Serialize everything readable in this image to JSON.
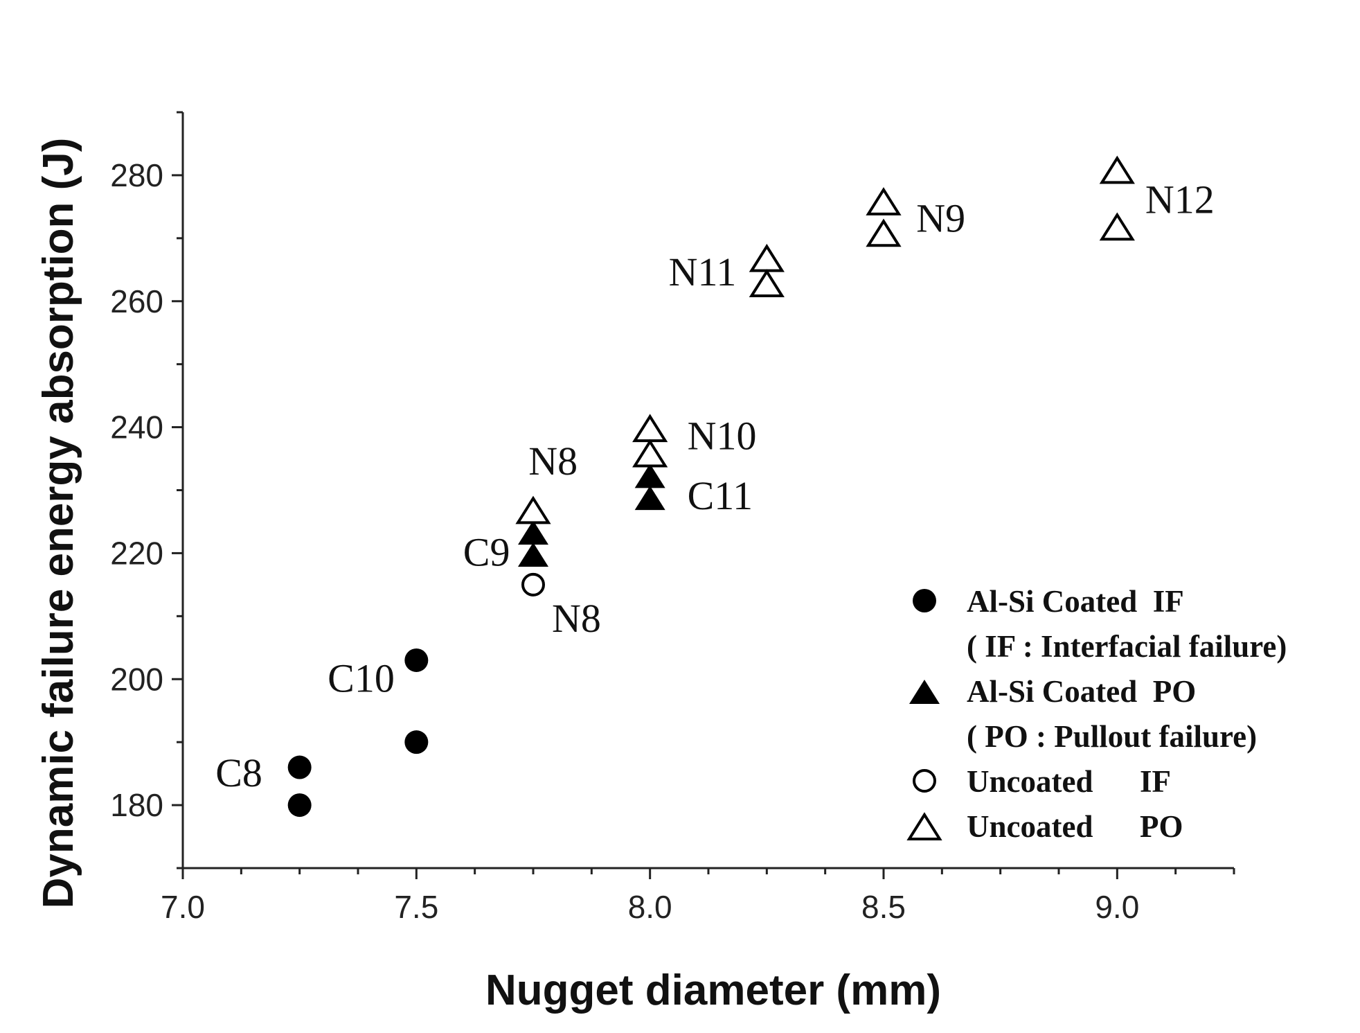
{
  "chart_data": {
    "type": "scatter",
    "xlabel": "Nugget diameter (mm)",
    "ylabel": "Dynamic failure energy absorption (J)",
    "xlim": [
      7.0,
      9.25
    ],
    "ylim": [
      170,
      290
    ],
    "x_ticks": [
      7.0,
      7.5,
      8.0,
      8.5,
      9.0
    ],
    "x_tick_labels": [
      "7.0",
      "7.5",
      "8.0",
      "8.5",
      "9.0"
    ],
    "y_ticks": [
      180,
      200,
      220,
      240,
      260,
      280
    ],
    "y_tick_labels": [
      "180",
      "200",
      "220",
      "240",
      "260",
      "280"
    ],
    "grid": false,
    "legend_position": "bottom-right",
    "series": [
      {
        "name": "Al-Si Coated IF",
        "legend_lines": [
          "Al-Si Coated  IF",
          "( IF : Interfacial failure)"
        ],
        "marker": "circle-filled",
        "points": [
          {
            "x": 7.25,
            "y": 186
          },
          {
            "x": 7.25,
            "y": 180
          },
          {
            "x": 7.5,
            "y": 203
          },
          {
            "x": 7.5,
            "y": 190
          }
        ]
      },
      {
        "name": "Al-Si Coated PO",
        "legend_lines": [
          "Al-Si Coated  PO",
          "( PO : Pullout failure)"
        ],
        "marker": "triangle-filled",
        "points": [
          {
            "x": 7.75,
            "y": 223
          },
          {
            "x": 7.75,
            "y": 219.5
          },
          {
            "x": 8.0,
            "y": 232
          },
          {
            "x": 8.0,
            "y": 228.5
          }
        ]
      },
      {
        "name": "Uncoated IF",
        "legend_lines": [
          "Uncoated      IF"
        ],
        "marker": "circle-open",
        "points": [
          {
            "x": 7.75,
            "y": 215
          }
        ]
      },
      {
        "name": "Uncoated PO",
        "legend_lines": [
          "Uncoated      PO"
        ],
        "marker": "triangle-open",
        "points": [
          {
            "x": 7.75,
            "y": 226.5
          },
          {
            "x": 8.0,
            "y": 239.5
          },
          {
            "x": 8.0,
            "y": 235.5
          },
          {
            "x": 8.25,
            "y": 266.5
          },
          {
            "x": 8.25,
            "y": 262.5
          },
          {
            "x": 8.5,
            "y": 275.5
          },
          {
            "x": 8.5,
            "y": 270.5
          },
          {
            "x": 9.0,
            "y": 280.5
          },
          {
            "x": 9.0,
            "y": 271.5
          }
        ]
      }
    ],
    "annotations": [
      {
        "text": "C8",
        "x": 7.07,
        "y": 183
      },
      {
        "text": "C10",
        "x": 7.31,
        "y": 198
      },
      {
        "text": "C9",
        "x": 7.6,
        "y": 218
      },
      {
        "text": "N8",
        "x": 7.74,
        "y": 232.5
      },
      {
        "text": "N8",
        "x": 7.79,
        "y": 207.5
      },
      {
        "text": "N10",
        "x": 8.08,
        "y": 236.5
      },
      {
        "text": "C11",
        "x": 8.08,
        "y": 227
      },
      {
        "text": "N11",
        "x": 8.04,
        "y": 262.5
      },
      {
        "text": "N9",
        "x": 8.57,
        "y": 271
      },
      {
        "text": "N12",
        "x": 9.06,
        "y": 274
      }
    ]
  }
}
